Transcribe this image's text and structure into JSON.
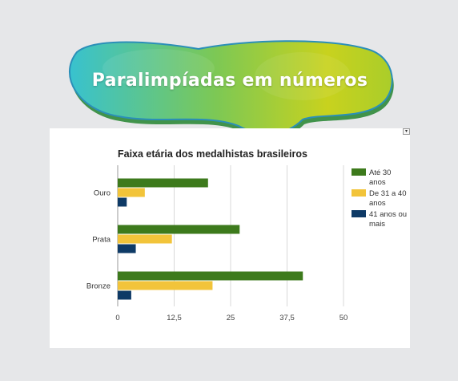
{
  "banner": {
    "title": "Paralimpíadas em números"
  },
  "colors": {
    "series_1": "#3d7a1c",
    "series_2": "#f2c43a",
    "series_3": "#0e3a66",
    "grid": "#d8d8d8",
    "background": "#e6e7e9"
  },
  "chart_data": {
    "type": "bar",
    "orientation": "horizontal",
    "title": "Faixa etária dos medalhistas brasileiros",
    "categories": [
      "Ouro",
      "Prata",
      "Bronze"
    ],
    "series": [
      {
        "name": "Até 30 anos",
        "values": [
          20,
          27,
          41
        ]
      },
      {
        "name": "De 31 a 40 anos",
        "values": [
          6,
          12,
          21
        ]
      },
      {
        "name": "41 anos ou mais",
        "values": [
          2,
          4,
          3
        ]
      }
    ],
    "xlim": [
      0,
      50
    ],
    "xticks": [
      "0",
      "12,5",
      "25",
      "37,5",
      "50"
    ],
    "grid": true,
    "legend_position": "right"
  }
}
